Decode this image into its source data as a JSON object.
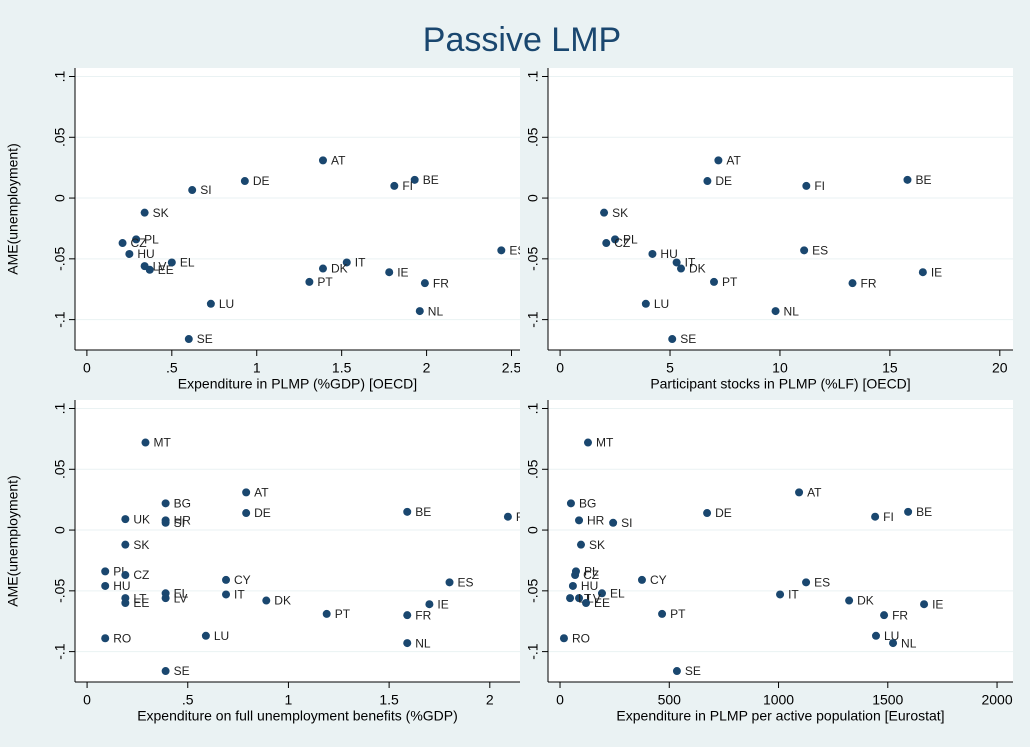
{
  "title": "Passive LMP",
  "chart_data": [
    {
      "type": "scatter",
      "xlabel": "Expenditure in PLMP (%GDP) [OECD]",
      "ylabel": "AME(unemployment)",
      "color": "#1a476f",
      "grid": true,
      "xlim": [
        -0.07,
        2.55
      ],
      "ylim": [
        -0.125,
        0.107
      ],
      "xticks": [
        0,
        {
          "value": 0.5,
          "label": ".5"
        },
        1,
        1.5,
        2,
        2.5
      ],
      "yticks": [
        {
          "value": -0.1,
          "label": "-.1"
        },
        {
          "value": -0.05,
          "label": "-.05"
        },
        0,
        {
          "value": 0.05,
          "label": ".05"
        },
        {
          "value": 0.1,
          "label": ".1"
        }
      ],
      "labels": [
        "AT",
        "DE",
        "BE",
        "FI",
        "SI",
        "SK",
        "PL",
        "CZ",
        "HU",
        "LV",
        "EE",
        "EL",
        "ES",
        "IT",
        "DK",
        "IE",
        "PT",
        "FR",
        "LU",
        "NL",
        "SE"
      ],
      "x": [
        1.39,
        0.93,
        1.93,
        1.81,
        0.62,
        0.34,
        0.29,
        0.21,
        0.25,
        0.34,
        0.37,
        0.5,
        2.44,
        1.53,
        1.39,
        1.78,
        1.31,
        1.99,
        0.73,
        1.96,
        0.6
      ],
      "values": [
        0.031,
        0.014,
        0.015,
        0.01,
        0.0066,
        -0.012,
        -0.034,
        -0.037,
        -0.046,
        -0.056,
        -0.059,
        -0.053,
        -0.043,
        -0.053,
        -0.058,
        -0.061,
        -0.069,
        -0.07,
        -0.087,
        -0.093,
        -0.116
      ]
    },
    {
      "type": "scatter",
      "xlabel": "Participant stocks in PLMP (%LF) [OECD]",
      "color": "#1a476f",
      "grid": true,
      "xlim": [
        -0.55,
        20.6
      ],
      "ylim": [
        -0.125,
        0.107
      ],
      "xticks": [
        0,
        5,
        10,
        15,
        20
      ],
      "yticks": [
        {
          "value": -0.1,
          "label": "-.1"
        },
        {
          "value": -0.05,
          "label": "-.05"
        },
        0,
        {
          "value": 0.05,
          "label": ".05"
        },
        {
          "value": 0.1,
          "label": ".1"
        }
      ],
      "labels": [
        "AT",
        "DE",
        "BE",
        "FI",
        "SK",
        "PL",
        "CZ",
        "HU",
        "IT",
        "DK",
        "ES",
        "IE",
        "PT",
        "FR",
        "LU",
        "NL",
        "SE"
      ],
      "x": [
        7.2,
        6.7,
        15.8,
        11.2,
        2.0,
        2.5,
        2.1,
        4.2,
        5.3,
        5.5,
        11.1,
        16.5,
        7.0,
        13.3,
        3.9,
        9.8,
        5.1
      ],
      "values": [
        0.031,
        0.014,
        0.015,
        0.01,
        -0.012,
        -0.034,
        -0.037,
        -0.046,
        -0.053,
        -0.058,
        -0.043,
        -0.061,
        -0.069,
        -0.07,
        -0.087,
        -0.093,
        -0.116
      ]
    },
    {
      "type": "scatter",
      "xlabel": "Expenditure on full unemployment benefits (%GDP)",
      "ylabel": "AME(unemployment)",
      "color": "#1a476f",
      "grid": true,
      "xlim": [
        -0.06,
        2.15
      ],
      "ylim": [
        -0.125,
        0.107
      ],
      "xticks": [
        0,
        {
          "value": 0.5,
          "label": ".5"
        },
        1,
        1.5,
        2
      ],
      "yticks": [
        {
          "value": -0.1,
          "label": "-.1"
        },
        {
          "value": -0.05,
          "label": "-.05"
        },
        0,
        {
          "value": 0.05,
          "label": ".05"
        },
        {
          "value": 0.1,
          "label": ".1"
        }
      ],
      "labels": [
        "MT",
        "AT",
        "BG",
        "DE",
        "BE",
        "F",
        "UK",
        "HR",
        "SI",
        "SK",
        "PL",
        "CZ",
        "HU",
        "CY",
        "ES",
        "EL",
        "LV",
        "IT",
        "LT",
        "EE",
        "DK",
        "IE",
        "PT",
        "FR",
        "LU",
        "RO",
        "NL",
        "SE"
      ],
      "x": [
        0.29,
        0.79,
        0.39,
        0.79,
        1.59,
        2.09,
        0.19,
        0.39,
        0.39,
        0.19,
        0.09,
        0.19,
        0.09,
        0.69,
        1.8,
        0.39,
        0.39,
        0.69,
        0.19,
        0.19,
        0.89,
        1.7,
        1.19,
        1.59,
        0.59,
        0.09,
        1.59,
        0.39
      ],
      "values": [
        0.072,
        0.031,
        0.022,
        0.014,
        0.015,
        0.011,
        0.009,
        0.008,
        0.006,
        -0.012,
        -0.034,
        -0.037,
        -0.046,
        -0.041,
        -0.043,
        -0.052,
        -0.056,
        -0.053,
        -0.056,
        -0.06,
        -0.058,
        -0.061,
        -0.069,
        -0.07,
        -0.087,
        -0.089,
        -0.093,
        -0.116
      ]
    },
    {
      "type": "scatter",
      "xlabel": "Expenditure in PLMP per active population [Eurostat]",
      "color": "#1a476f",
      "grid": true,
      "xlim": [
        -55,
        2073
      ],
      "ylim": [
        -0.125,
        0.107
      ],
      "xticks": [
        0,
        500,
        1000,
        1500,
        2000
      ],
      "yticks": [
        {
          "value": -0.1,
          "label": "-.1"
        },
        {
          "value": -0.05,
          "label": "-.05"
        },
        0,
        {
          "value": 0.05,
          "label": ".05"
        },
        {
          "value": 0.1,
          "label": ".1"
        }
      ],
      "labels": [
        "MT",
        "AT",
        "BG",
        "DE",
        "BE",
        "FI",
        "HR",
        "SI",
        "SK",
        "PL",
        "CZ",
        "HU",
        "CY",
        "ES",
        "EL",
        "LV",
        "LT",
        "EE",
        "IT",
        "DK",
        "IE",
        "PT",
        "FR",
        "LU",
        "RO",
        "NL",
        "SE"
      ],
      "x": [
        128,
        1094,
        50,
        673,
        1593,
        1442,
        87,
        243,
        96,
        73,
        69,
        59,
        375,
        1126,
        192,
        87,
        46,
        119,
        1007,
        1323,
        1666,
        467,
        1483,
        1446,
        18,
        1524,
        535
      ],
      "values": [
        0.072,
        0.031,
        0.022,
        0.014,
        0.015,
        0.011,
        0.008,
        0.006,
        -0.012,
        -0.034,
        -0.037,
        -0.046,
        -0.041,
        -0.043,
        -0.052,
        -0.056,
        -0.056,
        -0.06,
        -0.053,
        -0.058,
        -0.061,
        -0.069,
        -0.07,
        -0.087,
        -0.089,
        -0.093,
        -0.116
      ]
    }
  ]
}
